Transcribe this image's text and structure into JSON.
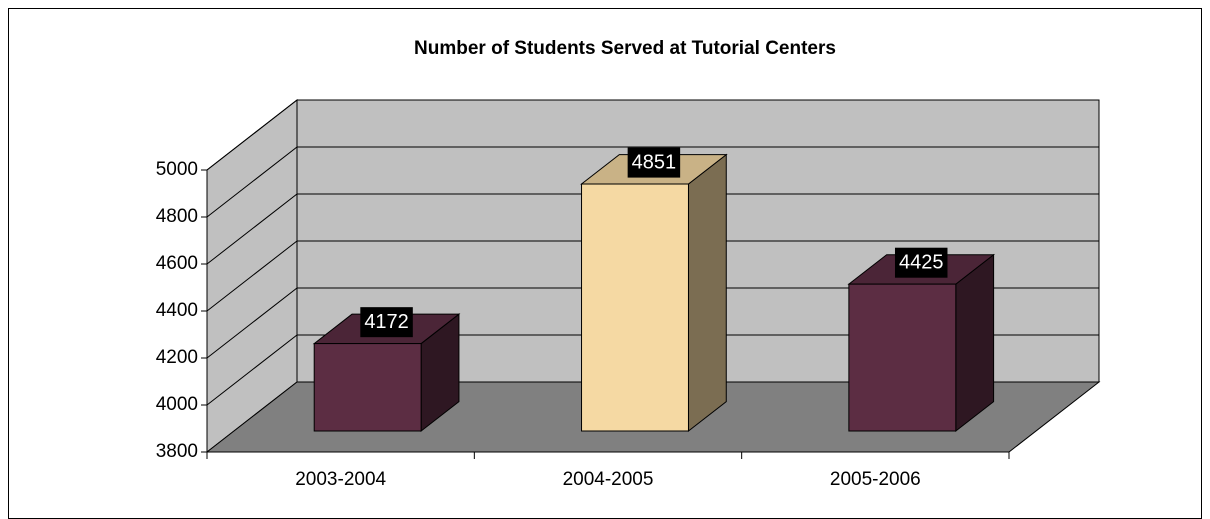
{
  "chart_data": {
    "type": "bar3d",
    "title": "Number of Students Served at Tutorial Centers",
    "categories": [
      "2003-2004",
      "2004-2005",
      "2005-2006"
    ],
    "values": [
      4172,
      4851,
      4425
    ],
    "colors": [
      "#5c2d43",
      "#f5d9a3",
      "#5c2d43"
    ],
    "ylim": [
      3800,
      5000
    ],
    "yticks": [
      3800,
      4000,
      4200,
      4400,
      4600,
      4800,
      5000
    ],
    "grid": true
  }
}
